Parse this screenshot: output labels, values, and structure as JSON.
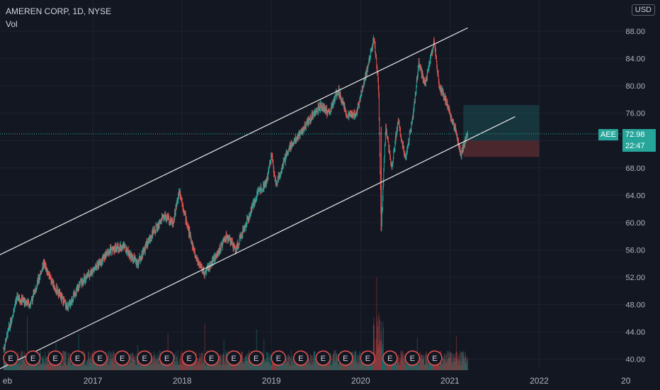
{
  "header": {
    "title": "AMEREN CORP, 1D, NYSE",
    "volume_label": "Vol"
  },
  "currency_button": "USD",
  "last_price": {
    "ticker": "AEE",
    "price": "72.98",
    "countdown": "22:47"
  },
  "event_marker_label": "E",
  "colors": {
    "background": "#131722",
    "grid": "#1e2230",
    "up": "#26a69a",
    "down": "#ef5350",
    "channel": "#e6e6e6",
    "earnings": "#ef5350",
    "target_zone": "#26a69a",
    "stop_zone": "#ef5350"
  },
  "chart_data": {
    "type": "candlestick",
    "symbol": "AEE",
    "interval": "1D",
    "y_axis": {
      "ticks": [
        "88.00",
        "84.00",
        "80.00",
        "76.00",
        "72.00",
        "68.00",
        "64.00",
        "60.00",
        "56.00",
        "52.00",
        "48.00",
        "44.00",
        "40.00"
      ],
      "range": [
        38.4,
        90.5
      ]
    },
    "x_axis": {
      "ticks": [
        "eb",
        "2017",
        "2018",
        "2019",
        "2020",
        "2021",
        "2022",
        "20"
      ],
      "range": [
        2015.96,
        2022.98
      ]
    },
    "price_path": [
      [
        2016.0,
        41.5
      ],
      [
        2016.15,
        49.0
      ],
      [
        2016.3,
        48.0
      ],
      [
        2016.45,
        54.0
      ],
      [
        2016.55,
        51.0
      ],
      [
        2016.72,
        47.5
      ],
      [
        2016.85,
        51.0
      ],
      [
        2017.0,
        53.0
      ],
      [
        2017.2,
        56.0
      ],
      [
        2017.35,
        56.5
      ],
      [
        2017.5,
        54.0
      ],
      [
        2017.65,
        58.0
      ],
      [
        2017.8,
        61.0
      ],
      [
        2017.9,
        60.0
      ],
      [
        2017.97,
        64.8
      ],
      [
        2018.05,
        60.0
      ],
      [
        2018.15,
        55.0
      ],
      [
        2018.25,
        52.5
      ],
      [
        2018.4,
        55.5
      ],
      [
        2018.5,
        58.0
      ],
      [
        2018.6,
        56.0
      ],
      [
        2018.75,
        61.0
      ],
      [
        2018.85,
        64.5
      ],
      [
        2018.95,
        66.0
      ],
      [
        2019.0,
        70.0
      ],
      [
        2019.05,
        65.5
      ],
      [
        2019.2,
        71.0
      ],
      [
        2019.35,
        73.5
      ],
      [
        2019.45,
        75.5
      ],
      [
        2019.55,
        77.0
      ],
      [
        2019.65,
        76.0
      ],
      [
        2019.75,
        79.5
      ],
      [
        2019.85,
        75.5
      ],
      [
        2019.95,
        76.0
      ],
      [
        2020.1,
        84.0
      ],
      [
        2020.15,
        87.0
      ],
      [
        2020.2,
        80.0
      ],
      [
        2020.23,
        58.9
      ],
      [
        2020.28,
        74.0
      ],
      [
        2020.35,
        68.0
      ],
      [
        2020.42,
        75.0
      ],
      [
        2020.5,
        69.0
      ],
      [
        2020.6,
        77.0
      ],
      [
        2020.65,
        83.5
      ],
      [
        2020.72,
        80.0
      ],
      [
        2020.82,
        86.5
      ],
      [
        2020.88,
        80.0
      ],
      [
        2020.95,
        78.0
      ],
      [
        2021.05,
        74.0
      ],
      [
        2021.12,
        70.0
      ],
      [
        2021.2,
        72.98
      ]
    ],
    "volume_estimate": "bars along bottom, spikes ~2020.2",
    "channel_lines": [
      {
        "name": "upper",
        "from": [
          2015.96,
          55.3
        ],
        "to": [
          2021.2,
          88.5
        ]
      },
      {
        "name": "lower",
        "from": [
          2015.96,
          38.6
        ],
        "to": [
          2021.73,
          75.5
        ]
      }
    ],
    "position_zones": {
      "entry": 72.0,
      "target": 77.2,
      "stop": 69.6,
      "x_range": [
        2021.15,
        2022.0
      ]
    },
    "earnings_marker_count": 20,
    "grid": true
  }
}
